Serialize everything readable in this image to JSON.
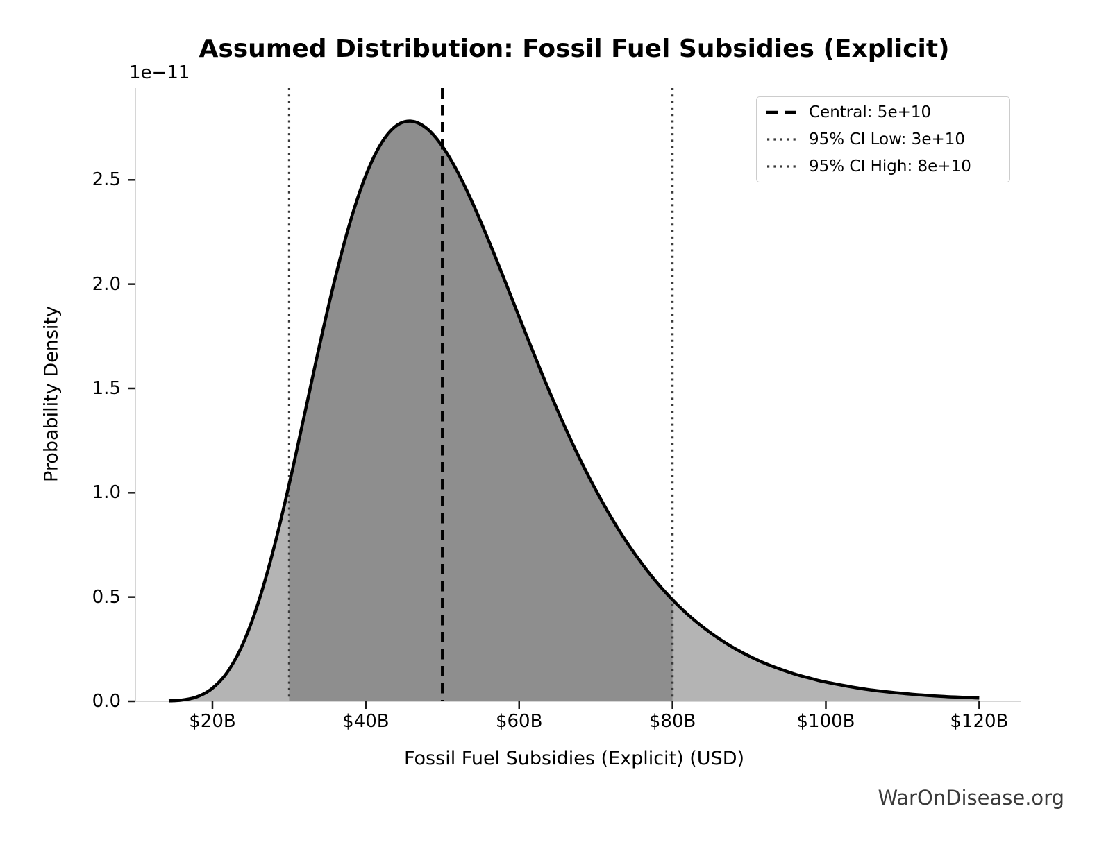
{
  "title": "Assumed Distribution: Fossil Fuel Subsidies (Explicit)",
  "watermark": "WarOnDisease.org",
  "axes": {
    "x_label": "Fossil Fuel Subsidies (Explicit) (USD)",
    "y_label": "Probability Density",
    "y_offset_label": "1e−11",
    "x_ticks": [
      {
        "value": 20,
        "label": "$20B"
      },
      {
        "value": 40,
        "label": "$40B"
      },
      {
        "value": 60,
        "label": "$60B"
      },
      {
        "value": 80,
        "label": "$80B"
      },
      {
        "value": 100,
        "label": "$100B"
      },
      {
        "value": 120,
        "label": "$120B"
      }
    ],
    "y_ticks": [
      {
        "value": 0.0,
        "label": "0.0"
      },
      {
        "value": 0.5,
        "label": "0.5"
      },
      {
        "value": 1.0,
        "label": "1.0"
      },
      {
        "value": 1.5,
        "label": "1.5"
      },
      {
        "value": 2.0,
        "label": "2.0"
      },
      {
        "value": 2.5,
        "label": "2.5"
      }
    ]
  },
  "legend": {
    "items": [
      {
        "label": "Central: 5e+10",
        "style": "dashed"
      },
      {
        "label": "95% CI Low: 3e+10",
        "style": "dotted"
      },
      {
        "label": "95% CI High: 8e+10",
        "style": "dotted"
      }
    ]
  },
  "chart_data": {
    "type": "area",
    "title": "Assumed Distribution: Fossil Fuel Subsidies (Explicit)",
    "xlabel": "Fossil Fuel Subsidies (Explicit) (USD)",
    "ylabel": "Probability Density",
    "x_unit": "billions of USD",
    "y_unit": "probability density, multiples of 1e-11",
    "distribution": {
      "family": "lognormal",
      "median_usd": 50000000000,
      "sigma_log": 0.3
    },
    "central_value": 50000000000,
    "ci_low": 30000000000,
    "ci_high": 80000000000,
    "xlim": [
      9.95,
      125.4
    ],
    "ylim": [
      0,
      2.94
    ],
    "grid": false,
    "legend_position": "upper right",
    "curve_x": [
      14.3,
      16,
      18,
      20,
      22,
      24,
      26,
      28,
      30,
      32,
      34,
      36,
      38,
      40,
      42,
      44,
      46,
      48,
      50,
      52,
      54,
      56,
      58,
      60,
      62,
      64,
      66,
      68,
      70,
      72,
      74,
      76,
      78,
      80,
      82,
      84,
      86,
      88,
      90,
      92,
      94,
      96,
      98,
      100,
      105,
      110,
      115,
      120
    ],
    "curve_y": [
      0.002,
      0.006,
      0.022,
      0.063,
      0.143,
      0.278,
      0.476,
      0.734,
      1.04,
      1.374,
      1.712,
      2.028,
      2.303,
      2.521,
      2.674,
      2.76,
      2.781,
      2.745,
      2.66,
      2.536,
      2.383,
      2.211,
      2.029,
      1.843,
      1.659,
      1.481,
      1.313,
      1.156,
      1.013,
      0.882,
      0.765,
      0.661,
      0.568,
      0.487,
      0.416,
      0.355,
      0.302,
      0.256,
      0.217,
      0.183,
      0.155,
      0.13,
      0.11,
      0.092,
      0.059,
      0.038,
      0.024,
      0.016
    ],
    "colors": {
      "curve": "#000000",
      "fill_tail": "#b4b4b4",
      "fill_ci": "#8e8e8e",
      "central_line": "#000000",
      "ci_line": "#3a3a3a",
      "spine": "#d6d6d6",
      "tick": "#1a1a1a"
    }
  }
}
